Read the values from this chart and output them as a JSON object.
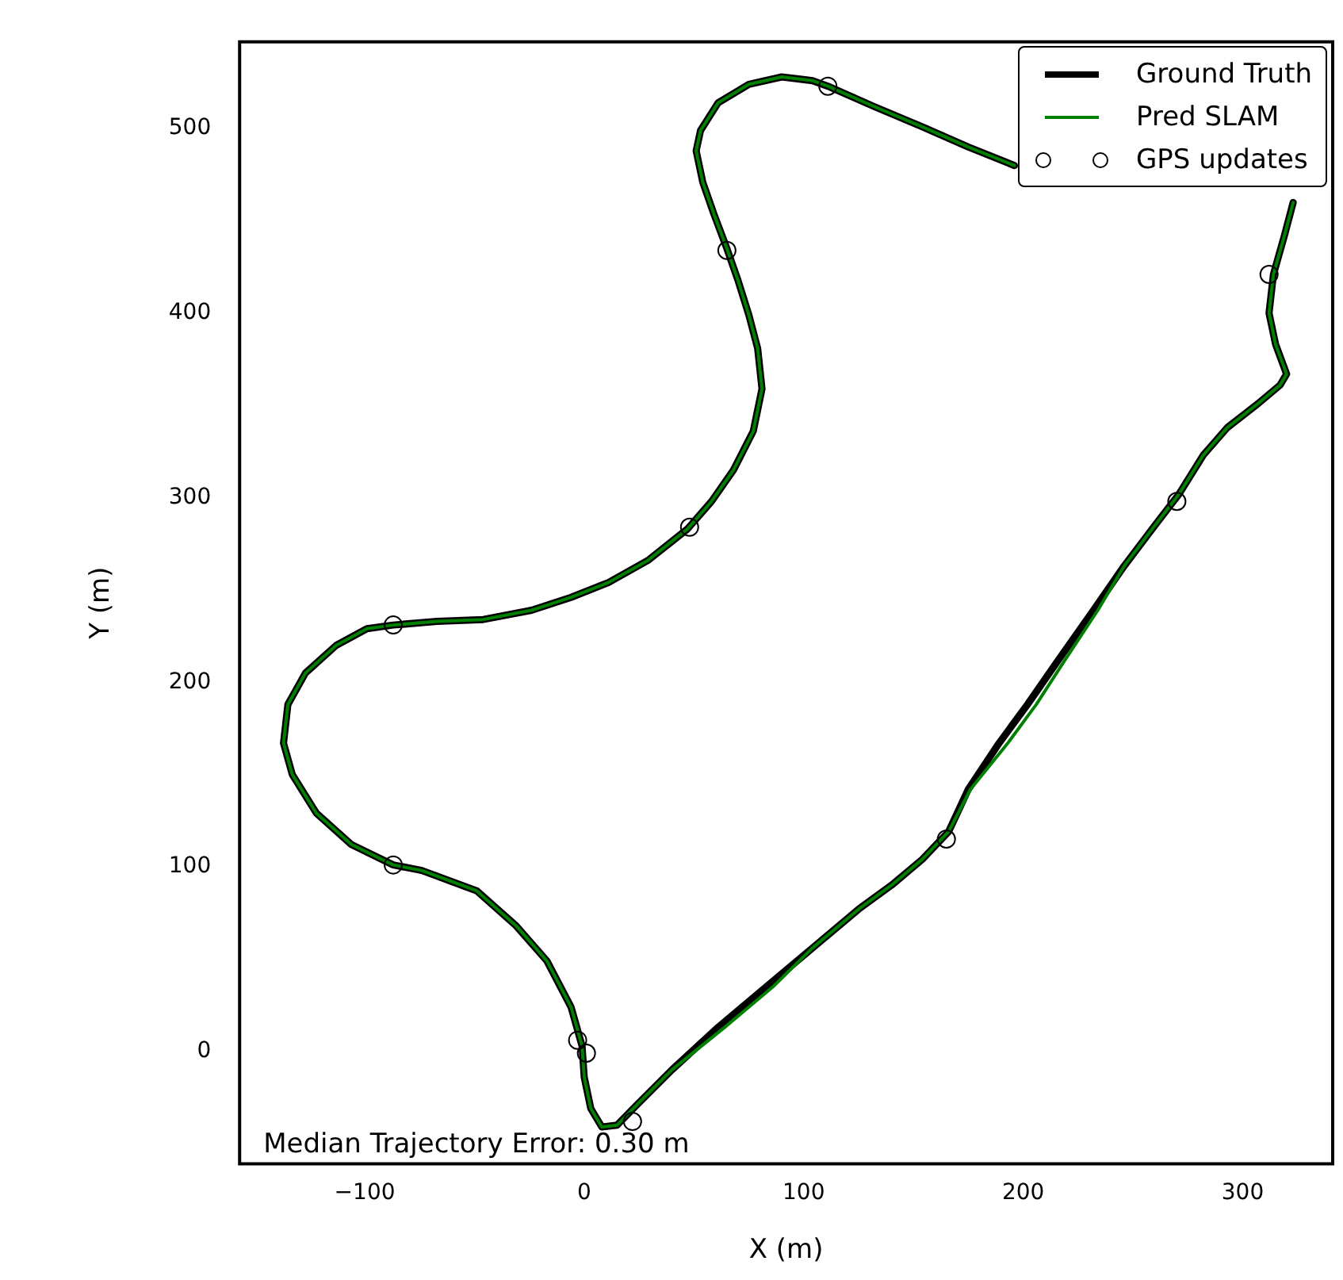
{
  "chart_data": {
    "type": "line",
    "xlabel": "X (m)",
    "ylabel": "Y (m)",
    "xlim": [
      -157,
      341
    ],
    "ylim": [
      -61,
      547
    ],
    "xticks": [
      -100,
      0,
      100,
      200,
      300
    ],
    "yticks": [
      0,
      100,
      200,
      300,
      400,
      500
    ],
    "grid": false,
    "legend": "top right",
    "annotations": [
      "Median Trajectory Error: 0.30 m"
    ],
    "series": [
      {
        "name": "Ground Truth",
        "type": "line",
        "color": "#000000",
        "line_style": "solid",
        "marker": "none",
        "x": [
          323,
          319,
          314,
          312,
          315,
          320,
          317,
          307,
          293,
          282,
          271,
          260,
          246,
          232,
          216,
          202,
          189,
          175,
          166,
          154,
          140,
          125,
          104,
          83,
          61,
          40,
          24,
          15,
          8,
          3,
          0,
          -1,
          -6,
          -17,
          -31,
          -49,
          -74,
          -87,
          -106,
          -122,
          -133,
          -137,
          -135,
          -127,
          -113,
          -99,
          -87,
          -67,
          -46,
          -24,
          -6,
          11,
          29,
          47,
          58,
          68,
          77,
          81,
          79,
          75,
          70,
          65,
          59,
          54,
          51,
          53,
          61,
          75,
          90,
          104,
          111,
          132,
          154,
          175,
          196
        ],
        "values": [
          460,
          442,
          421,
          400,
          383,
          367,
          361,
          351,
          338,
          323,
          302,
          285,
          263,
          239,
          212,
          188,
          167,
          142,
          119,
          104,
          90,
          77,
          56,
          35,
          13,
          -10,
          -29,
          -40,
          -41,
          -31,
          -14,
          3,
          24,
          49,
          68,
          87,
          98,
          101,
          112,
          129,
          150,
          167,
          188,
          205,
          220,
          229,
          231,
          233,
          234,
          239,
          246,
          254,
          266,
          283,
          298,
          315,
          336,
          359,
          381,
          399,
          418,
          435,
          454,
          471,
          488,
          499,
          514,
          524,
          528,
          526,
          523,
          512,
          501,
          490,
          480
        ]
      },
      {
        "name": "Pred SLAM",
        "type": "line",
        "color": "#008000",
        "line_style": "solid",
        "marker": "none",
        "x": [
          323,
          319,
          314,
          312,
          315,
          320,
          317,
          307,
          293,
          282,
          271,
          260,
          246,
          234,
          219,
          206,
          193,
          176,
          166,
          154,
          140,
          125,
          104,
          86,
          64,
          40,
          24,
          15,
          8,
          3,
          0,
          -1,
          -6,
          -17,
          -31,
          -49,
          -74,
          -87,
          -106,
          -122,
          -133,
          -137,
          -135,
          -127,
          -113,
          -99,
          -87,
          -67,
          -46,
          -24,
          -6,
          11,
          29,
          47,
          58,
          68,
          77,
          81,
          79,
          75,
          70,
          65,
          59,
          54,
          51,
          53,
          61,
          75,
          90,
          104,
          111,
          132,
          154,
          175,
          196
        ],
        "values": [
          460,
          442,
          421,
          400,
          383,
          367,
          361,
          351,
          338,
          323,
          302,
          285,
          263,
          239,
          212,
          188,
          167,
          142,
          119,
          104,
          90,
          77,
          56,
          35,
          13,
          -10,
          -29,
          -40,
          -41,
          -31,
          -14,
          3,
          24,
          49,
          68,
          87,
          98,
          101,
          112,
          129,
          150,
          167,
          188,
          205,
          220,
          229,
          231,
          233,
          234,
          239,
          246,
          254,
          266,
          283,
          298,
          315,
          336,
          359,
          381,
          399,
          418,
          435,
          454,
          471,
          488,
          499,
          514,
          524,
          528,
          526,
          523,
          512,
          501,
          490,
          480
        ]
      },
      {
        "name": "GPS updates",
        "type": "scatter",
        "color": "#000000",
        "marker": "circle",
        "x": [
          111,
          65,
          48,
          -87,
          -87,
          -3,
          1,
          22,
          165,
          270,
          312
        ],
        "values": [
          523,
          434,
          284,
          231,
          101,
          6,
          -1,
          -38,
          115,
          298,
          421
        ]
      }
    ]
  }
}
